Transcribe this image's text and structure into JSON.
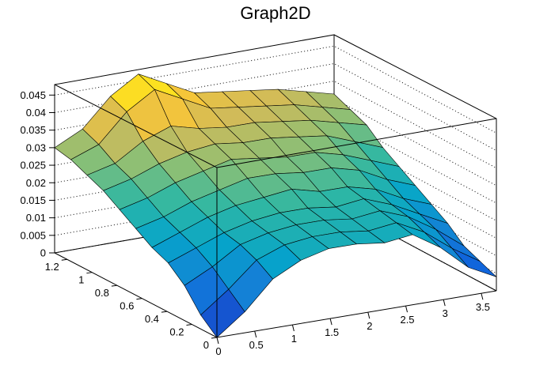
{
  "chart_data": {
    "type": "surface3d",
    "title": "Graph2D",
    "x_axis": {
      "range": [
        0,
        3.7
      ],
      "ticks": [
        "0",
        "0.5",
        "1",
        "1.5",
        "2",
        "2.5",
        "3",
        "3.5"
      ]
    },
    "y_axis": {
      "range": [
        0,
        1.3
      ],
      "ticks": [
        "0",
        "0.2",
        "0.4",
        "0.6",
        "0.8",
        "1",
        "1.2"
      ]
    },
    "z_axis": {
      "range": [
        0,
        0.048
      ],
      "ticks": [
        "0",
        "0.005",
        "0.01",
        "0.015",
        "0.02",
        "0.025",
        "0.03",
        "0.035",
        "0.04",
        "0.045"
      ]
    },
    "grid": true,
    "palette": [
      "#352a87",
      "#0f5cdd",
      "#1481d6",
      "#06a4ca",
      "#2eb7a4",
      "#87bf77",
      "#d1bb59",
      "#fec832",
      "#f9fb0e"
    ],
    "x": [
      0,
      0.37,
      0.74,
      1.11,
      1.48,
      1.85,
      2.22,
      2.59,
      2.96,
      3.33,
      3.7
    ],
    "y": [
      0,
      0.13,
      0.26,
      0.39,
      0.52,
      0.65,
      0.78,
      0.91,
      1.04,
      1.17,
      1.3
    ],
    "z": [
      [
        0.0,
        0.006,
        0.014,
        0.018,
        0.02,
        0.02,
        0.019,
        0.02,
        0.015,
        0.008,
        0.004
      ],
      [
        0.004,
        0.01,
        0.017,
        0.02,
        0.021,
        0.021,
        0.02,
        0.021,
        0.017,
        0.011,
        0.006
      ],
      [
        0.01,
        0.014,
        0.019,
        0.021,
        0.022,
        0.022,
        0.021,
        0.022,
        0.019,
        0.014,
        0.008
      ],
      [
        0.014,
        0.017,
        0.02,
        0.022,
        0.023,
        0.023,
        0.022,
        0.023,
        0.02,
        0.016,
        0.012
      ],
      [
        0.016,
        0.019,
        0.022,
        0.024,
        0.025,
        0.026,
        0.024,
        0.024,
        0.022,
        0.018,
        0.015
      ],
      [
        0.019,
        0.021,
        0.024,
        0.026,
        0.028,
        0.028,
        0.027,
        0.027,
        0.025,
        0.021,
        0.018
      ],
      [
        0.022,
        0.024,
        0.027,
        0.029,
        0.031,
        0.03,
        0.029,
        0.029,
        0.027,
        0.024,
        0.021
      ],
      [
        0.025,
        0.027,
        0.03,
        0.032,
        0.033,
        0.032,
        0.032,
        0.031,
        0.03,
        0.027,
        0.024
      ],
      [
        0.027,
        0.029,
        0.034,
        0.037,
        0.035,
        0.034,
        0.034,
        0.033,
        0.032,
        0.03,
        0.028
      ],
      [
        0.029,
        0.032,
        0.04,
        0.045,
        0.041,
        0.037,
        0.036,
        0.035,
        0.034,
        0.032,
        0.03
      ],
      [
        0.03,
        0.034,
        0.042,
        0.047,
        0.043,
        0.039,
        0.038,
        0.037,
        0.036,
        0.034,
        0.032
      ]
    ]
  }
}
